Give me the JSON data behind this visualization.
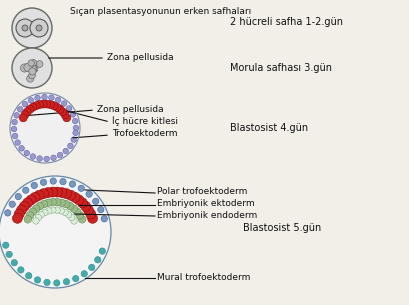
{
  "background_color": "#f2efe8",
  "title_full": "Sıçan plasentasyonunun erken safhaları",
  "stage_labels": [
    "2 hücreli safha 1-2.gün",
    "Morula safhası 3.gün",
    "Blastosist 4.gün",
    "Blastosist 5.gün"
  ],
  "annot_zona1": "Zona pellusida",
  "annot_zona2": "Zona pellusida",
  "annot_ich": "İç hücre kitlesi",
  "annot_trofo": "Trofoektoderm",
  "annot_polar": "Polar trofoektoderm",
  "annot_ekto": "Embriyonik ektoderm",
  "annot_endo": "Embriyonik endoderm",
  "annot_mural": "Mural trofoektoderm",
  "red_color": "#cc2222",
  "blue_bead_color": "#7799bb",
  "cyan_bead_color": "#44aaaa",
  "green_color": "#99bb88",
  "line_color": "#111111",
  "text_color": "#111111",
  "gray_cell": "#c8c8c8",
  "gray_dark": "#888888"
}
